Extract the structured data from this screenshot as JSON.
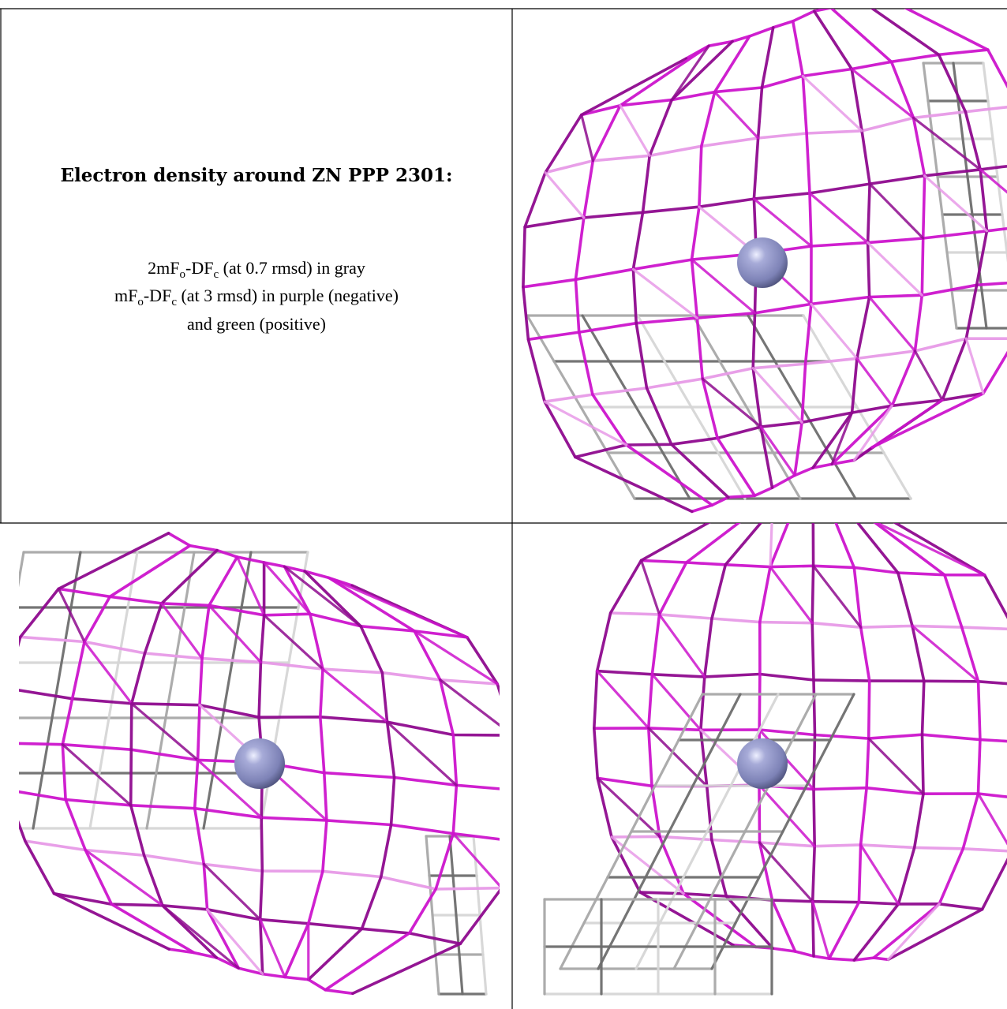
{
  "panel_text": {
    "title": "Electron density around ZN PPP 2301:",
    "line1": {
      "a": "2mF",
      "b": "o",
      "c": "-DF",
      "d": "c",
      "e": " (at 0.7 rmsd) in gray"
    },
    "line2": {
      "a": "mF",
      "b": "o",
      "c": "-DF",
      "d": "c",
      "e": " (at 3 rmsd) in purple (negative)"
    },
    "line3": "and green (positive)"
  },
  "colors": {
    "purple_mesh": "#cc14cc",
    "purple_dark": "#8e0a8e",
    "purple_light": "#e79ae7",
    "gray_mesh": "#a8a8a8",
    "gray_dark": "#6e6e6e",
    "gray_light": "#d6d6d6",
    "zinc_atom": "#8e93c4",
    "zinc_shade": "#5c608f",
    "background": "#ffffff",
    "grid_lines": "#000000"
  },
  "views": [
    {
      "name": "view-top-right",
      "element": "ZN",
      "mesh": [
        "purple",
        "gray"
      ]
    },
    {
      "name": "view-bottom-left",
      "element": "ZN",
      "mesh": [
        "purple",
        "gray"
      ]
    },
    {
      "name": "view-bottom-right",
      "element": "ZN",
      "mesh": [
        "purple",
        "gray"
      ]
    }
  ]
}
